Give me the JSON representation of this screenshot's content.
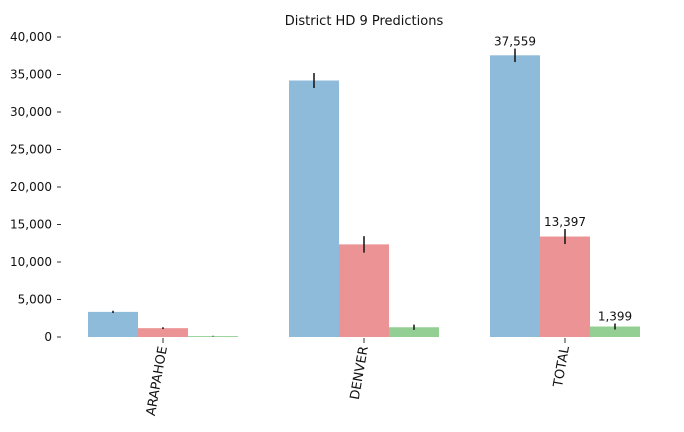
{
  "chart_data": {
    "type": "bar",
    "title": "District HD 9 Predictions",
    "xlabel": "",
    "ylabel": "",
    "categories": [
      "ARAPAHOE",
      "DENVER",
      "TOTAL"
    ],
    "ylim": [
      0,
      40000
    ],
    "yticks": [
      0,
      5000,
      10000,
      15000,
      20000,
      25000,
      30000,
      35000,
      40000
    ],
    "ytick_labels": [
      "0",
      "5,000",
      "10,000",
      "15,000",
      "20,000",
      "25,000",
      "30,000",
      "35,000",
      "40,000"
    ],
    "grid": false,
    "series": [
      {
        "values": [
          3350,
          34200,
          37559
        ],
        "errors": [
          150,
          1000,
          900
        ],
        "color": "#8fbbdb"
      },
      {
        "values": [
          1180,
          12350,
          13397
        ],
        "errors": [
          120,
          1100,
          1000
        ],
        "color": "#eb9395"
      },
      {
        "values": [
          120,
          1300,
          1399
        ],
        "errors": [
          40,
          350,
          400
        ],
        "color": "#93cf93"
      }
    ],
    "data_labels": [
      {
        "series": 0,
        "category": 2,
        "text": "37,559"
      },
      {
        "series": 1,
        "category": 2,
        "text": "13,397"
      },
      {
        "series": 2,
        "category": 2,
        "text": "1,399"
      }
    ]
  }
}
